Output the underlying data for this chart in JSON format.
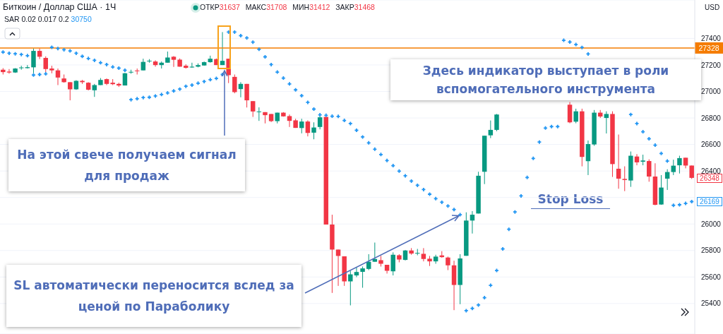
{
  "chart_data": {
    "type": "candlestick",
    "title": "Биткоин / Доллар США · 1Ч",
    "categories": [
      null,
      null,
      null,
      null,
      null,
      null,
      null,
      null,
      null,
      null,
      null,
      null,
      null,
      null,
      null,
      null,
      null,
      null,
      null,
      null,
      null,
      null,
      null,
      null,
      null,
      null,
      null,
      null,
      null,
      null,
      null,
      null,
      null,
      null,
      null,
      null,
      null,
      null,
      null,
      null,
      null,
      null,
      null,
      null,
      null,
      null,
      null,
      null,
      null,
      null,
      null,
      null,
      null,
      null,
      null,
      null,
      null,
      null,
      null,
      null,
      null,
      null,
      null,
      null,
      null,
      null,
      null,
      null,
      null,
      null,
      null,
      null,
      null,
      null,
      null,
      null,
      null,
      null,
      null,
      null,
      null,
      null,
      null,
      null,
      null,
      null,
      null,
      null,
      null,
      null,
      null,
      null,
      null,
      null,
      null,
      null,
      null,
      null,
      null,
      null,
      null,
      null,
      null,
      null,
      null,
      null,
      null,
      null,
      null,
      null,
      null,
      null,
      null,
      null
    ],
    "ohlc": [
      [
        27164,
        27176,
        27128,
        27146
      ],
      [
        27150,
        27169,
        27134,
        27143
      ],
      [
        27143,
        27176,
        27140,
        27173
      ],
      [
        27176,
        27194,
        27164,
        27181
      ],
      [
        27176,
        27199,
        27173,
        27183
      ],
      [
        27182,
        27324,
        27137,
        27306
      ],
      [
        27306,
        27324,
        27244,
        27262
      ],
      [
        27253,
        27265,
        27146,
        27169
      ],
      [
        27173,
        27194,
        27137,
        27159
      ],
      [
        27159,
        27173,
        27048,
        27105
      ],
      [
        27098,
        27128,
        27066,
        27070
      ],
      [
        27070,
        27070,
        26933,
        27016
      ],
      [
        27016,
        27085,
        27012,
        27080
      ],
      [
        27080,
        27087,
        27057,
        27070
      ],
      [
        27066,
        27070,
        27008,
        27013
      ],
      [
        27009,
        27057,
        26959,
        27048
      ],
      [
        27048,
        27101,
        27048,
        27087
      ],
      [
        27093,
        27098,
        27048,
        27057
      ],
      [
        27066,
        27093,
        27048,
        27055
      ],
      [
        27057,
        27066,
        27034,
        27045
      ],
      [
        27045,
        27141,
        27045,
        27137
      ],
      [
        27143,
        27164,
        27134,
        27148
      ],
      [
        27158,
        27173,
        27128,
        27153
      ],
      [
        27159,
        27247,
        27159,
        27223
      ],
      [
        27228,
        27244,
        27217,
        27232
      ],
      [
        27226,
        27235,
        27187,
        27199
      ],
      [
        27199,
        27226,
        27173,
        27217
      ],
      [
        27217,
        27301,
        27217,
        27256
      ],
      [
        27262,
        27267,
        27185,
        27239
      ],
      [
        27240,
        27249,
        27187,
        27187
      ],
      [
        27194,
        27205,
        27173,
        27178
      ],
      [
        27181,
        27217,
        27178,
        27187
      ],
      [
        27187,
        27212,
        27182,
        27199
      ],
      [
        27196,
        27226,
        27194,
        27221
      ],
      [
        27221,
        27270,
        27217,
        27247
      ],
      [
        27244,
        27249,
        27199,
        27199
      ],
      [
        27199,
        27448,
        27199,
        27231
      ],
      [
        27247,
        27247,
        27063,
        27123
      ],
      [
        27110,
        27128,
        26986,
        26995
      ],
      [
        27018,
        27070,
        26956,
        27057
      ],
      [
        27057,
        27057,
        26879,
        26933
      ],
      [
        26927,
        26927,
        26808,
        26849
      ],
      [
        26844,
        26880,
        26778,
        26849
      ],
      [
        26844,
        26844,
        26759,
        26821
      ],
      [
        26830,
        26830,
        26769,
        26776
      ],
      [
        26776,
        26840,
        26759,
        26840
      ],
      [
        26840,
        26844,
        26810,
        26812
      ],
      [
        26814,
        26826,
        26732,
        26778
      ],
      [
        26782,
        26794,
        26725,
        26725
      ],
      [
        26724,
        26794,
        26684,
        26773
      ],
      [
        26773,
        26782,
        26661,
        26687
      ],
      [
        26689,
        26767,
        26639,
        26728
      ],
      [
        26732,
        26817,
        26714,
        26805
      ],
      [
        26808,
        26808,
        25996,
        25996
      ],
      [
        25996,
        26070,
        25480,
        25807
      ],
      [
        25807,
        25807,
        25533,
        25759
      ],
      [
        25756,
        25756,
        25533,
        25567
      ],
      [
        25567,
        25647,
        25386,
        25620
      ],
      [
        25612,
        25674,
        25599,
        25638
      ],
      [
        25639,
        25679,
        25519,
        25665
      ],
      [
        25661,
        25772,
        25652,
        25715
      ],
      [
        25715,
        25860,
        25715,
        25736
      ],
      [
        25727,
        25759,
        25679,
        25700
      ],
      [
        25692,
        25692,
        25626,
        25647
      ],
      [
        25643,
        25786,
        25612,
        25768
      ],
      [
        25764,
        25772,
        25711,
        25732
      ],
      [
        25729,
        25804,
        25725,
        25800
      ],
      [
        25800,
        25818,
        25768,
        25777
      ],
      [
        25779,
        25812,
        25764,
        25782
      ],
      [
        25775,
        25818,
        25718,
        25736
      ],
      [
        25738,
        25759,
        25683,
        25718
      ],
      [
        25718,
        25768,
        25700,
        25754
      ],
      [
        25763,
        25795,
        25745,
        25750
      ],
      [
        25747,
        25754,
        25652,
        25688
      ],
      [
        25688,
        25723,
        25350,
        25540
      ],
      [
        25540,
        25772,
        25395,
        25740
      ],
      [
        25760,
        26088,
        25760,
        26026
      ],
      [
        26026,
        26097,
        25928,
        26070
      ],
      [
        26079,
        26394,
        26079,
        26364
      ],
      [
        26394,
        26666,
        26301,
        26666
      ],
      [
        26669,
        26781,
        26648,
        26710
      ],
      [
        26710,
        26830,
        26700,
        26826
      ],
      null,
      null,
      null,
      null,
      null,
      null,
      null,
      null,
      null,
      null,
      null,
      [
        26900,
        26920,
        26760,
        26767
      ],
      [
        26772,
        26870,
        26760,
        26850
      ],
      [
        26850,
        26870,
        26435,
        26506
      ],
      [
        26474,
        26630,
        26369,
        26603
      ],
      [
        26600,
        26860,
        26590,
        26840
      ],
      [
        26840,
        26860,
        26800,
        26811
      ],
      [
        26800,
        26850,
        26683,
        26830
      ],
      [
        26830,
        26850,
        26355,
        26452
      ],
      [
        26417,
        26675,
        26266,
        26342
      ],
      [
        26340,
        26435,
        26248,
        26332
      ],
      [
        26328,
        26547,
        26280,
        26515
      ],
      [
        26509,
        26527,
        26443,
        26465
      ],
      [
        26470,
        26523,
        26443,
        26479
      ],
      [
        26475,
        26488,
        26319,
        26358
      ],
      [
        26358,
        26458,
        26141,
        26145
      ],
      [
        26147,
        26369,
        26145,
        26275
      ],
      [
        26342,
        26413,
        26257,
        26392
      ],
      [
        26392,
        26485,
        26369,
        26440
      ],
      [
        26443,
        26515,
        26381,
        26497
      ],
      [
        26500,
        26500,
        26420,
        26441
      ],
      [
        26441,
        26441,
        26340,
        26348
      ]
    ],
    "colors": [
      "#f23645",
      "#f23645",
      "#089981",
      "#089981",
      "#089981",
      "#089981",
      "#f23645",
      "#f23645",
      "#f23645",
      "#f23645",
      "#f23645",
      "#f23645",
      "#089981",
      "#f23645",
      "#f23645",
      "#089981",
      "#089981",
      "#f23645",
      "#f23645",
      "#f23645",
      "#089981",
      "#089981",
      "#f23645",
      "#089981",
      "#089981",
      "#f23645",
      "#089981",
      "#089981",
      "#f23645",
      "#f23645",
      "#f23645",
      "#089981",
      "#089981",
      "#089981",
      "#089981",
      "#f23645",
      "#089981",
      "#f23645",
      "#f23645",
      "#089981",
      "#f23645",
      "#f23645",
      "#089981",
      "#f23645",
      "#f23645",
      "#089981",
      "#f23645",
      "#f23645",
      "#f23645",
      "#089981",
      "#f23645",
      "#089981",
      "#089981",
      "#f23645",
      "#f23645",
      "#f23645",
      "#f23645",
      "#089981",
      "#089981",
      "#089981",
      "#089981",
      "#089981",
      "#f23645",
      "#f23645",
      "#089981",
      "#f23645",
      "#089981",
      "#f23645",
      "#089981",
      "#f23645",
      "#f23645",
      "#089981",
      "#f23645",
      "#f23645",
      "#f23645",
      "#089981",
      "#089981",
      "#089981",
      "#089981",
      "#089981",
      "#089981",
      "#089981",
      null,
      null,
      null,
      null,
      null,
      null,
      null,
      null,
      null,
      null,
      null,
      "#f23645",
      "#089981",
      "#f23645",
      "#089981",
      "#089981",
      "#f23645",
      "#089981",
      "#f23645",
      "#f23645",
      "#f23645",
      "#089981",
      "#f23645",
      "#089981",
      "#f23645",
      "#f23645",
      "#089981",
      "#089981",
      "#089981",
      "#089981",
      "#f23645",
      "#f23645"
    ],
    "series": [
      {
        "type": "scatter",
        "color": "#2196f3",
        "values": [
          27297,
          27288,
          27284,
          27279,
          27270,
          27124,
          27128,
          27133,
          27333,
          27324,
          27315,
          27306,
          27288,
          27265,
          27249,
          27235,
          27217,
          27203,
          27185,
          27176,
          27160,
          26938,
          26945,
          26954,
          26956,
          26966,
          26977,
          26989,
          27004,
          27018,
          27039,
          27048,
          27062,
          27075,
          27089,
          27098,
          27128,
          27448,
          27448,
          27421,
          27404,
          27372,
          27318,
          27261,
          27203,
          27146,
          27101,
          27057,
          27012,
          26968,
          26918,
          26867,
          26824,
          26820,
          26813,
          26812,
          26781,
          26758,
          26707,
          26657,
          26612,
          26564,
          26524,
          26479,
          26440,
          26399,
          26364,
          26324,
          26292,
          26260,
          26225,
          26191,
          26164,
          26136,
          26109,
          26070,
          25346,
          25363,
          25389,
          25444,
          25537,
          25649,
          25812,
          25960,
          26091,
          26212,
          26351,
          26495,
          26618,
          26724,
          26735,
          26735,
          27386,
          27373,
          27354,
          27332,
          27283,
          null,
          null,
          null,
          null,
          null,
          null,
          26826,
          26758,
          26696,
          26643,
          26595,
          26532,
          26475,
          26141,
          26145,
          26155,
          26169
        ]
      }
    ],
    "marker": "cross",
    "ylim": [
      25170,
      27690
    ],
    "yticks": [
      25400,
      25600,
      25800,
      26000,
      {
        "value": 26200,
        "label": null
      },
      26400,
      26600,
      26800,
      27000,
      27200,
      27400
    ],
    "grid": "y",
    "tick_labels": "y",
    "ref_lines": [
      {
        "axis": "y",
        "value": 27328,
        "label": "27328",
        "color": "#f57c00"
      }
    ],
    "annotations": [
      "ОТКР31637 МАКС31708 МИН31412 ЗАКР31468",
      "SAR 0.02 0.017 0.2 30750",
      "USD",
      "На этой свече получаем сигнал для продаж",
      "Здесь индикатор выступает в роли вспомогательного инструмента",
      "SL автоматически переносится вслед за ценой по Параболику",
      "Stop Loss",
      {
        "text": "26348",
        "y": 26348
      },
      {
        "text": "26169",
        "y": 26169
      }
    ]
  }
}
